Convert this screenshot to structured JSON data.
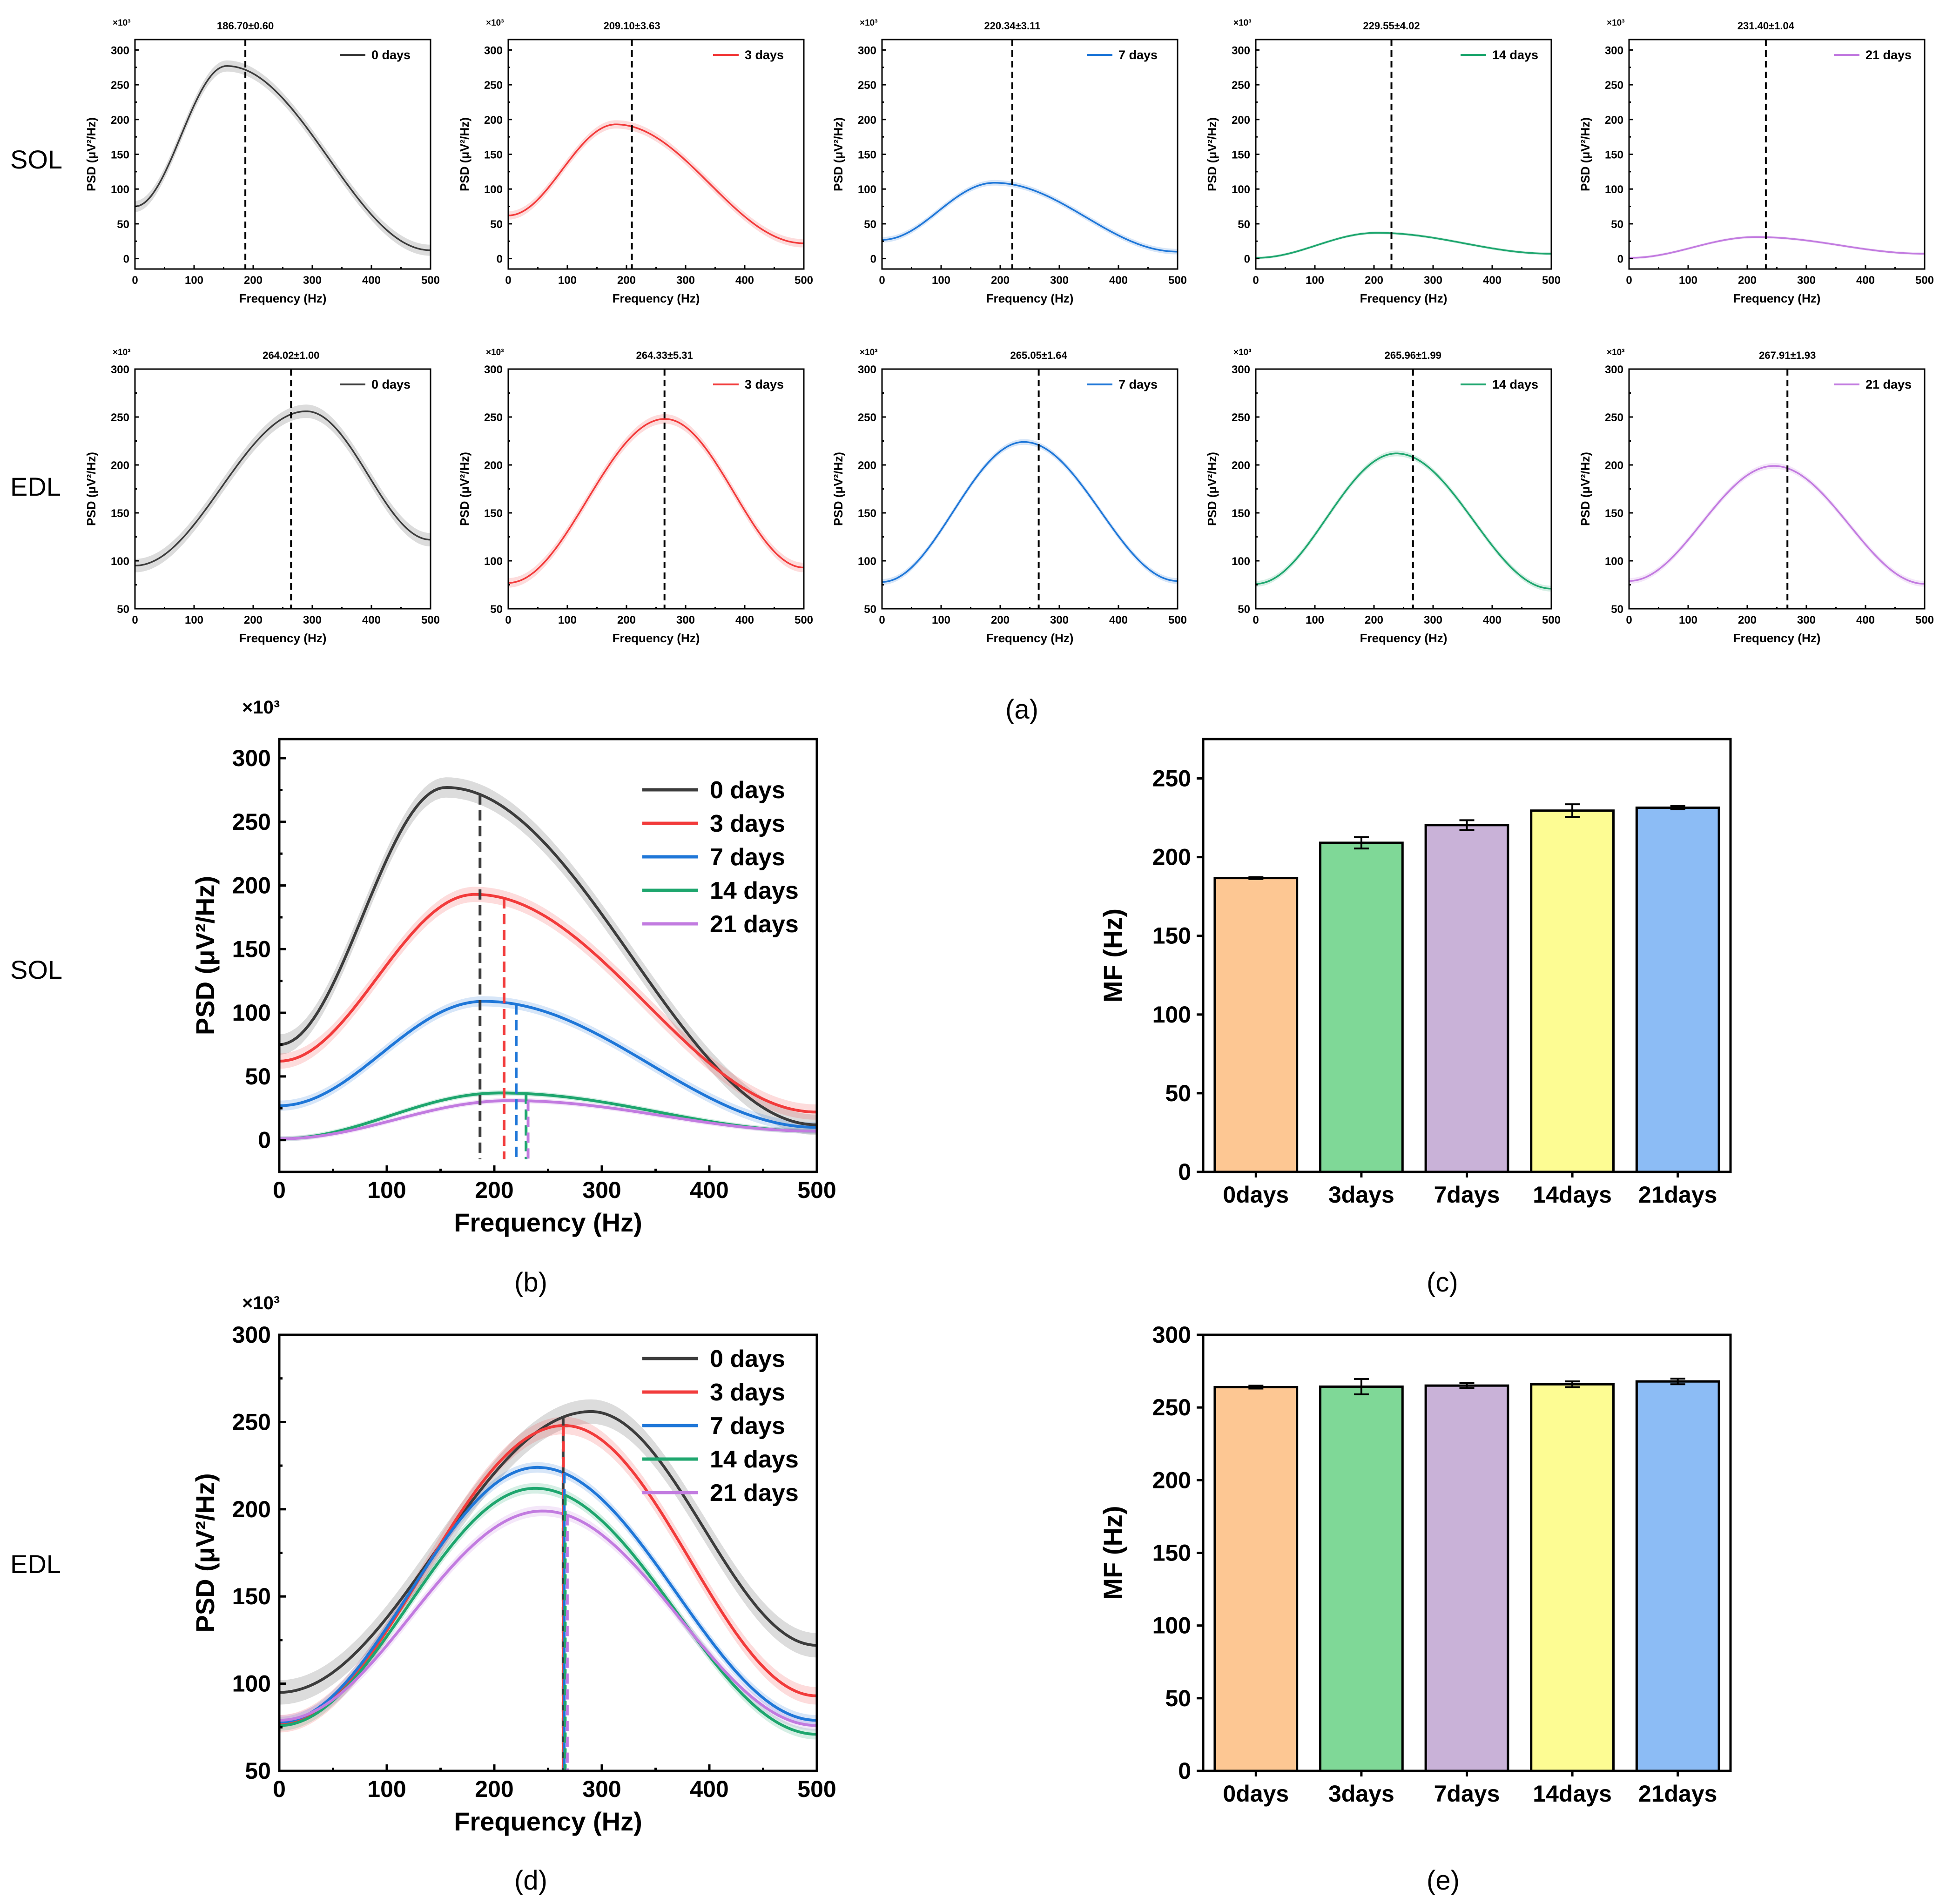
{
  "row_labels": {
    "sol": "SOL",
    "edl": "EDL"
  },
  "panel_labels": {
    "a": "(a)",
    "b": "(b)",
    "c": "(c)",
    "d": "(d)",
    "e": "(e)"
  },
  "colors": {
    "0 days": "#3c3c3c",
    "3 days": "#f23b3b",
    "7 days": "#1f77d8",
    "14 days": "#1ea66e",
    "21 days": "#c27be0"
  },
  "bar_colors": [
    "#fdc793",
    "#7fd897",
    "#c9b2d8",
    "#fdfc93",
    "#8cbcf5"
  ],
  "chart_data": [
    {
      "id": "a-sol-0",
      "type": "line",
      "row": "SOL",
      "legend": "0 days",
      "color": "#3c3c3c",
      "annotation": "186.70±0.60",
      "mf": 186.7,
      "multiplier": "×10³",
      "xlabel": "Frequency (Hz)",
      "ylabel": "PSD (μV²/Hz)",
      "xlim": [
        0,
        500
      ],
      "ylim": [
        -15,
        315
      ],
      "xticks": [
        0,
        100,
        200,
        300,
        400,
        500
      ],
      "yticks": [
        0,
        50,
        100,
        150,
        200,
        250,
        300
      ],
      "curve": {
        "start": 75,
        "peak_x": 155,
        "peak_y": 277,
        "end": 12
      },
      "band": 8
    },
    {
      "id": "a-sol-3",
      "type": "line",
      "row": "SOL",
      "legend": "3 days",
      "color": "#f23b3b",
      "annotation": "209.10±3.63",
      "mf": 209.1,
      "multiplier": "×10³",
      "xlabel": "Frequency (Hz)",
      "ylabel": "PSD (μV²/Hz)",
      "xlim": [
        0,
        500
      ],
      "ylim": [
        -15,
        315
      ],
      "xticks": [
        0,
        100,
        200,
        300,
        400,
        500
      ],
      "yticks": [
        0,
        50,
        100,
        150,
        200,
        250,
        300
      ],
      "curve": {
        "start": 62,
        "peak_x": 182,
        "peak_y": 193,
        "end": 22
      },
      "band": 6
    },
    {
      "id": "a-sol-7",
      "type": "line",
      "row": "SOL",
      "legend": "7 days",
      "color": "#1f77d8",
      "annotation": "220.34±3.11",
      "mf": 220.34,
      "multiplier": "×10³",
      "xlabel": "Frequency (Hz)",
      "ylabel": "PSD (μV²/Hz)",
      "xlim": [
        0,
        500
      ],
      "ylim": [
        -15,
        315
      ],
      "xticks": [
        0,
        100,
        200,
        300,
        400,
        500
      ],
      "yticks": [
        0,
        50,
        100,
        150,
        200,
        250,
        300
      ],
      "curve": {
        "start": 27,
        "peak_x": 190,
        "peak_y": 109,
        "end": 10
      },
      "band": 4
    },
    {
      "id": "a-sol-14",
      "type": "line",
      "row": "SOL",
      "legend": "14 days",
      "color": "#1ea66e",
      "annotation": "229.55±4.02",
      "mf": 229.55,
      "multiplier": "×10³",
      "xlabel": "Frequency (Hz)",
      "ylabel": "PSD (μV²/Hz)",
      "xlim": [
        0,
        500
      ],
      "ylim": [
        -15,
        315
      ],
      "xticks": [
        0,
        100,
        200,
        300,
        400,
        500
      ],
      "yticks": [
        0,
        50,
        100,
        150,
        200,
        250,
        300
      ],
      "curve": {
        "start": 1,
        "peak_x": 205,
        "peak_y": 37,
        "end": 7
      },
      "band": 2
    },
    {
      "id": "a-sol-21",
      "type": "line",
      "row": "SOL",
      "legend": "21 days",
      "color": "#c27be0",
      "annotation": "231.40±1.04",
      "mf": 231.4,
      "multiplier": "×10³",
      "xlabel": "Frequency (Hz)",
      "ylabel": "PSD (μV²/Hz)",
      "xlim": [
        0,
        500
      ],
      "ylim": [
        -15,
        315
      ],
      "xticks": [
        0,
        100,
        200,
        300,
        400,
        500
      ],
      "yticks": [
        0,
        50,
        100,
        150,
        200,
        250,
        300
      ],
      "curve": {
        "start": 1,
        "peak_x": 215,
        "peak_y": 31,
        "end": 7
      },
      "band": 2
    },
    {
      "id": "a-edl-0",
      "type": "line",
      "row": "EDL",
      "legend": "0 days",
      "color": "#3c3c3c",
      "annotation": "264.02±1.00",
      "mf": 264.02,
      "multiplier": "×10³",
      "xlabel": "Frequency (Hz)",
      "ylabel": "PSD (μV²/Hz)",
      "xlim": [
        0,
        500
      ],
      "ylim": [
        50,
        300
      ],
      "xticks": [
        0,
        100,
        200,
        300,
        400,
        500
      ],
      "yticks": [
        50,
        100,
        150,
        200,
        250,
        300
      ],
      "curve": {
        "start": 95,
        "peak_x": 290,
        "peak_y": 256,
        "end": 122
      },
      "band": 7
    },
    {
      "id": "a-edl-3",
      "type": "line",
      "row": "EDL",
      "legend": "3 days",
      "color": "#f23b3b",
      "annotation": "264.33±5.31",
      "mf": 264.33,
      "multiplier": "×10³",
      "xlabel": "Frequency (Hz)",
      "ylabel": "PSD (μV²/Hz)",
      "xlim": [
        0,
        500
      ],
      "ylim": [
        50,
        300
      ],
      "xticks": [
        0,
        100,
        200,
        300,
        400,
        500
      ],
      "yticks": [
        50,
        100,
        150,
        200,
        250,
        300
      ],
      "curve": {
        "start": 77,
        "peak_x": 265,
        "peak_y": 248,
        "end": 93
      },
      "band": 5
    },
    {
      "id": "a-edl-7",
      "type": "line",
      "row": "EDL",
      "legend": "7 days",
      "color": "#1f77d8",
      "annotation": "265.05±1.64",
      "mf": 265.05,
      "multiplier": "×10³",
      "xlabel": "Frequency (Hz)",
      "ylabel": "PSD (μV²/Hz)",
      "xlim": [
        0,
        500
      ],
      "ylim": [
        50,
        300
      ],
      "xticks": [
        0,
        100,
        200,
        300,
        400,
        500
      ],
      "yticks": [
        50,
        100,
        150,
        200,
        250,
        300
      ],
      "curve": {
        "start": 78,
        "peak_x": 240,
        "peak_y": 224,
        "end": 79
      },
      "band": 3
    },
    {
      "id": "a-edl-14",
      "type": "line",
      "row": "EDL",
      "legend": "14 days",
      "color": "#1ea66e",
      "annotation": "265.96±1.99",
      "mf": 265.96,
      "multiplier": "×10³",
      "xlabel": "Frequency (Hz)",
      "ylabel": "PSD (μV²/Hz)",
      "xlim": [
        0,
        500
      ],
      "ylim": [
        50,
        300
      ],
      "xticks": [
        0,
        100,
        200,
        300,
        400,
        500
      ],
      "yticks": [
        50,
        100,
        150,
        200,
        250,
        300
      ],
      "curve": {
        "start": 76,
        "peak_x": 238,
        "peak_y": 212,
        "end": 71
      },
      "band": 3
    },
    {
      "id": "a-edl-21",
      "type": "line",
      "row": "EDL",
      "legend": "21 days",
      "color": "#c27be0",
      "annotation": "267.91±1.93",
      "mf": 267.91,
      "multiplier": "×10³",
      "xlabel": "Frequency (Hz)",
      "ylabel": "PSD (μV²/Hz)",
      "xlim": [
        0,
        500
      ],
      "ylim": [
        50,
        300
      ],
      "xticks": [
        0,
        100,
        200,
        300,
        400,
        500
      ],
      "yticks": [
        50,
        100,
        150,
        200,
        250,
        300
      ],
      "curve": {
        "start": 79,
        "peak_x": 245,
        "peak_y": 199,
        "end": 76
      },
      "band": 3
    },
    {
      "id": "b",
      "type": "line",
      "row": "SOL",
      "multiplier": "×10³",
      "xlabel": "Frequency (Hz)",
      "ylabel": "PSD (μV²/Hz)",
      "xlim": [
        0,
        500
      ],
      "ylim": [
        -25,
        315
      ],
      "xticks": [
        0,
        100,
        200,
        300,
        400,
        500
      ],
      "yticks": [
        0,
        50,
        100,
        150,
        200,
        250,
        300
      ],
      "mf_line_bottom": -15,
      "series": [
        {
          "name": "0 days",
          "color": "#3c3c3c",
          "mf": 186.7,
          "curve": {
            "start": 75,
            "peak_x": 155,
            "peak_y": 277,
            "end": 12
          },
          "band": 8
        },
        {
          "name": "3 days",
          "color": "#f23b3b",
          "mf": 209.1,
          "curve": {
            "start": 62,
            "peak_x": 182,
            "peak_y": 193,
            "end": 22
          },
          "band": 6
        },
        {
          "name": "7 days",
          "color": "#1f77d8",
          "mf": 220.34,
          "curve": {
            "start": 27,
            "peak_x": 190,
            "peak_y": 109,
            "end": 10
          },
          "band": 4
        },
        {
          "name": "14 days",
          "color": "#1ea66e",
          "mf": 229.55,
          "curve": {
            "start": 1,
            "peak_x": 205,
            "peak_y": 37,
            "end": 7
          },
          "band": 2
        },
        {
          "name": "21 days",
          "color": "#c27be0",
          "mf": 231.4,
          "curve": {
            "start": 1,
            "peak_x": 215,
            "peak_y": 31,
            "end": 7
          },
          "band": 2
        }
      ]
    },
    {
      "id": "c",
      "type": "bar",
      "row": "SOL",
      "categories": [
        "0days",
        "3days",
        "7days",
        "14days",
        "21days"
      ],
      "values": [
        186.7,
        209.1,
        220.34,
        229.55,
        231.4
      ],
      "errors": [
        0.6,
        3.63,
        3.11,
        4.02,
        1.04
      ],
      "ylabel": "MF (Hz)",
      "ylim": [
        0,
        275
      ],
      "yticks": [
        0,
        50,
        100,
        150,
        200,
        250
      ]
    },
    {
      "id": "d",
      "type": "line",
      "row": "EDL",
      "multiplier": "×10³",
      "xlabel": "Frequency (Hz)",
      "ylabel": "PSD (μV²/Hz)",
      "xlim": [
        0,
        500
      ],
      "ylim": [
        50,
        300
      ],
      "xticks": [
        0,
        100,
        200,
        300,
        400,
        500
      ],
      "yticks": [
        50,
        100,
        150,
        200,
        250,
        300
      ],
      "mf_line_bottom": 50,
      "series": [
        {
          "name": "0 days",
          "color": "#3c3c3c",
          "mf": 264.02,
          "curve": {
            "start": 95,
            "peak_x": 290,
            "peak_y": 256,
            "end": 122
          },
          "band": 7
        },
        {
          "name": "3 days",
          "color": "#f23b3b",
          "mf": 264.33,
          "curve": {
            "start": 77,
            "peak_x": 265,
            "peak_y": 248,
            "end": 93
          },
          "band": 5
        },
        {
          "name": "7 days",
          "color": "#1f77d8",
          "mf": 265.05,
          "curve": {
            "start": 78,
            "peak_x": 240,
            "peak_y": 224,
            "end": 79
          },
          "band": 3
        },
        {
          "name": "14 days",
          "color": "#1ea66e",
          "mf": 265.96,
          "curve": {
            "start": 76,
            "peak_x": 238,
            "peak_y": 212,
            "end": 71
          },
          "band": 3
        },
        {
          "name": "21 days",
          "color": "#c27be0",
          "mf": 267.91,
          "curve": {
            "start": 79,
            "peak_x": 245,
            "peak_y": 199,
            "end": 76
          },
          "band": 3
        }
      ]
    },
    {
      "id": "e",
      "type": "bar",
      "row": "EDL",
      "categories": [
        "0days",
        "3days",
        "7days",
        "14days",
        "21days"
      ],
      "values": [
        264.02,
        264.33,
        265.05,
        265.96,
        267.91
      ],
      "errors": [
        1.0,
        5.31,
        1.64,
        1.99,
        1.93
      ],
      "ylabel": "MF (Hz)",
      "ylim": [
        0,
        300
      ],
      "yticks": [
        0,
        50,
        100,
        150,
        200,
        250,
        300
      ]
    }
  ]
}
